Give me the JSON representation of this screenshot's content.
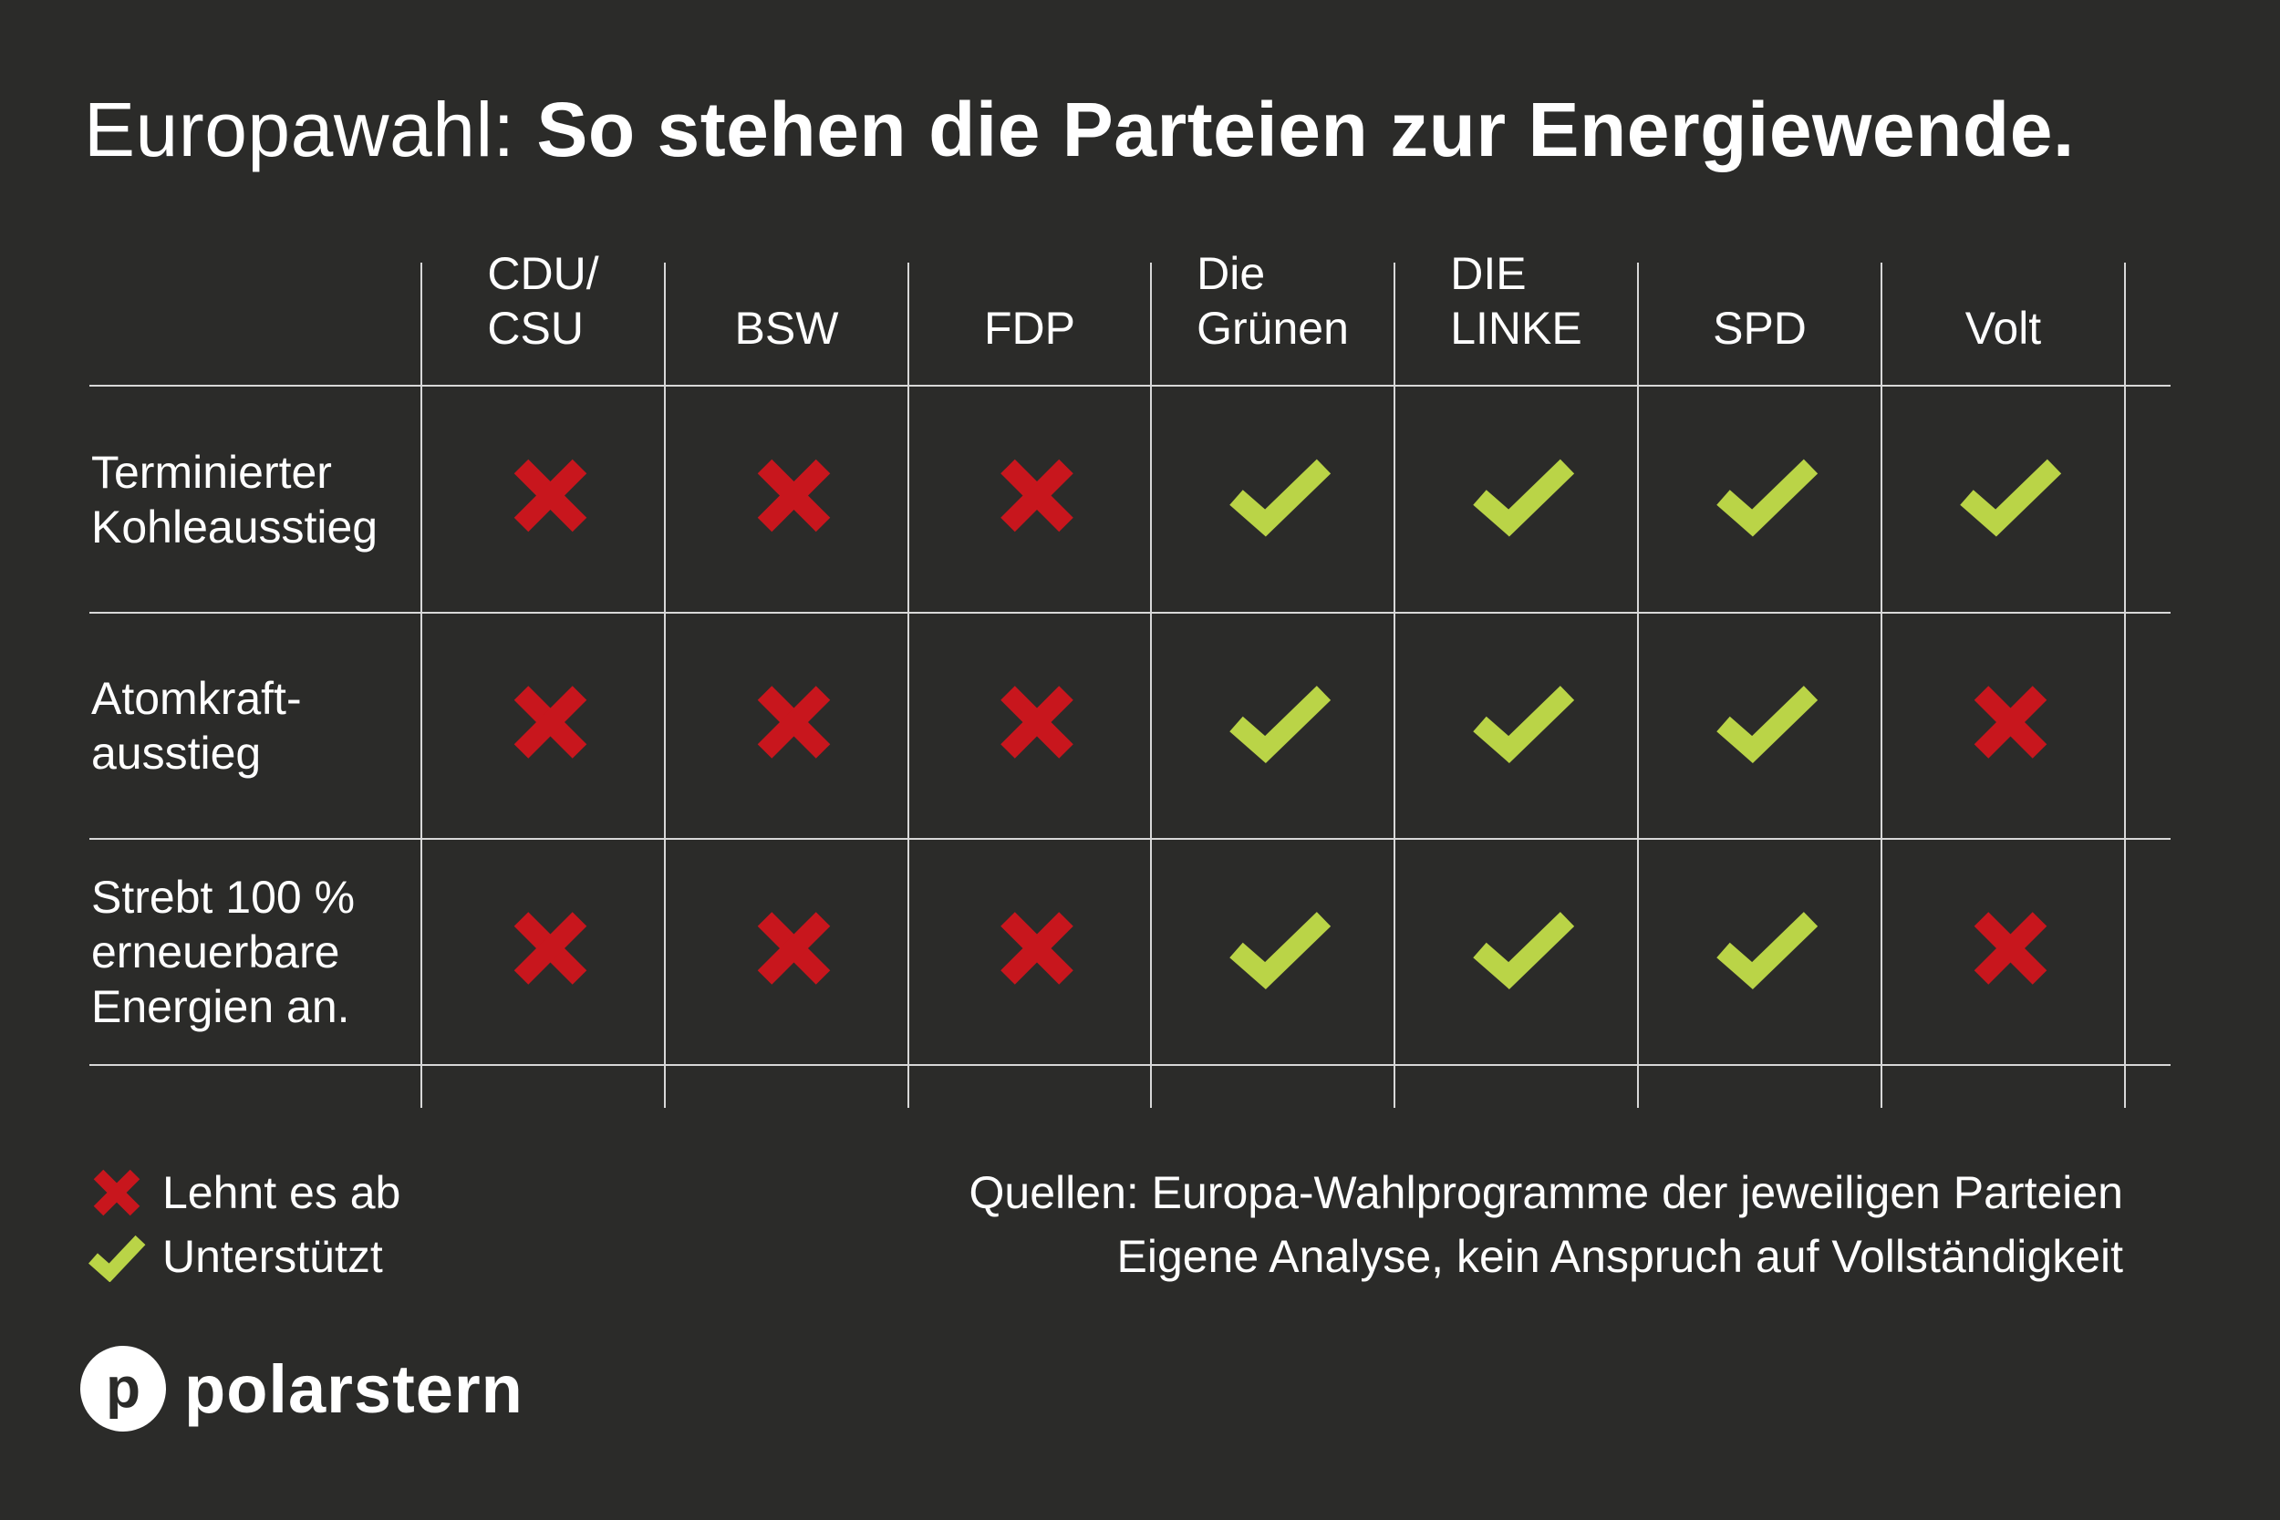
{
  "title": {
    "regular": "Europawahl: ",
    "bold": "So stehen die Parteien zur Energiewende."
  },
  "chart_data": {
    "type": "table",
    "columns": [
      "CDU/\nCSU",
      "BSW",
      "FDP",
      "Die\nGrünen",
      "DIE\nLINKE",
      "SPD",
      "Volt"
    ],
    "rows": [
      {
        "label": "Terminierter\nKohleausstieg",
        "values": [
          "ablehnend",
          "ablehnend",
          "ablehnend",
          "unterstützt",
          "unterstützt",
          "unterstützt",
          "unterstützt"
        ]
      },
      {
        "label": "Atomkraft-\nausstieg",
        "values": [
          "ablehnend",
          "ablehnend",
          "ablehnend",
          "unterstützt",
          "unterstützt",
          "unterstützt",
          "ablehnend"
        ]
      },
      {
        "label": "Strebt 100 %\nerneuerbare\nEnergien an.",
        "values": [
          "ablehnend",
          "ablehnend",
          "ablehnend",
          "unterstützt",
          "unterstützt",
          "unterstützt",
          "ablehnend"
        ]
      }
    ]
  },
  "legend": {
    "reject": {
      "label": "Lehnt es ab",
      "icon": "cross-icon",
      "color": "#c8161d"
    },
    "support": {
      "label": "Unterstützt",
      "icon": "check-icon",
      "color": "#bad447"
    }
  },
  "sources": [
    "Quellen: Europa-Wahlprogramme der jeweiligen Parteien",
    "Eigene Analyse, kein Anspruch auf Vollständigkeit"
  ],
  "logo": {
    "mark": "p",
    "text": "polarstern"
  }
}
